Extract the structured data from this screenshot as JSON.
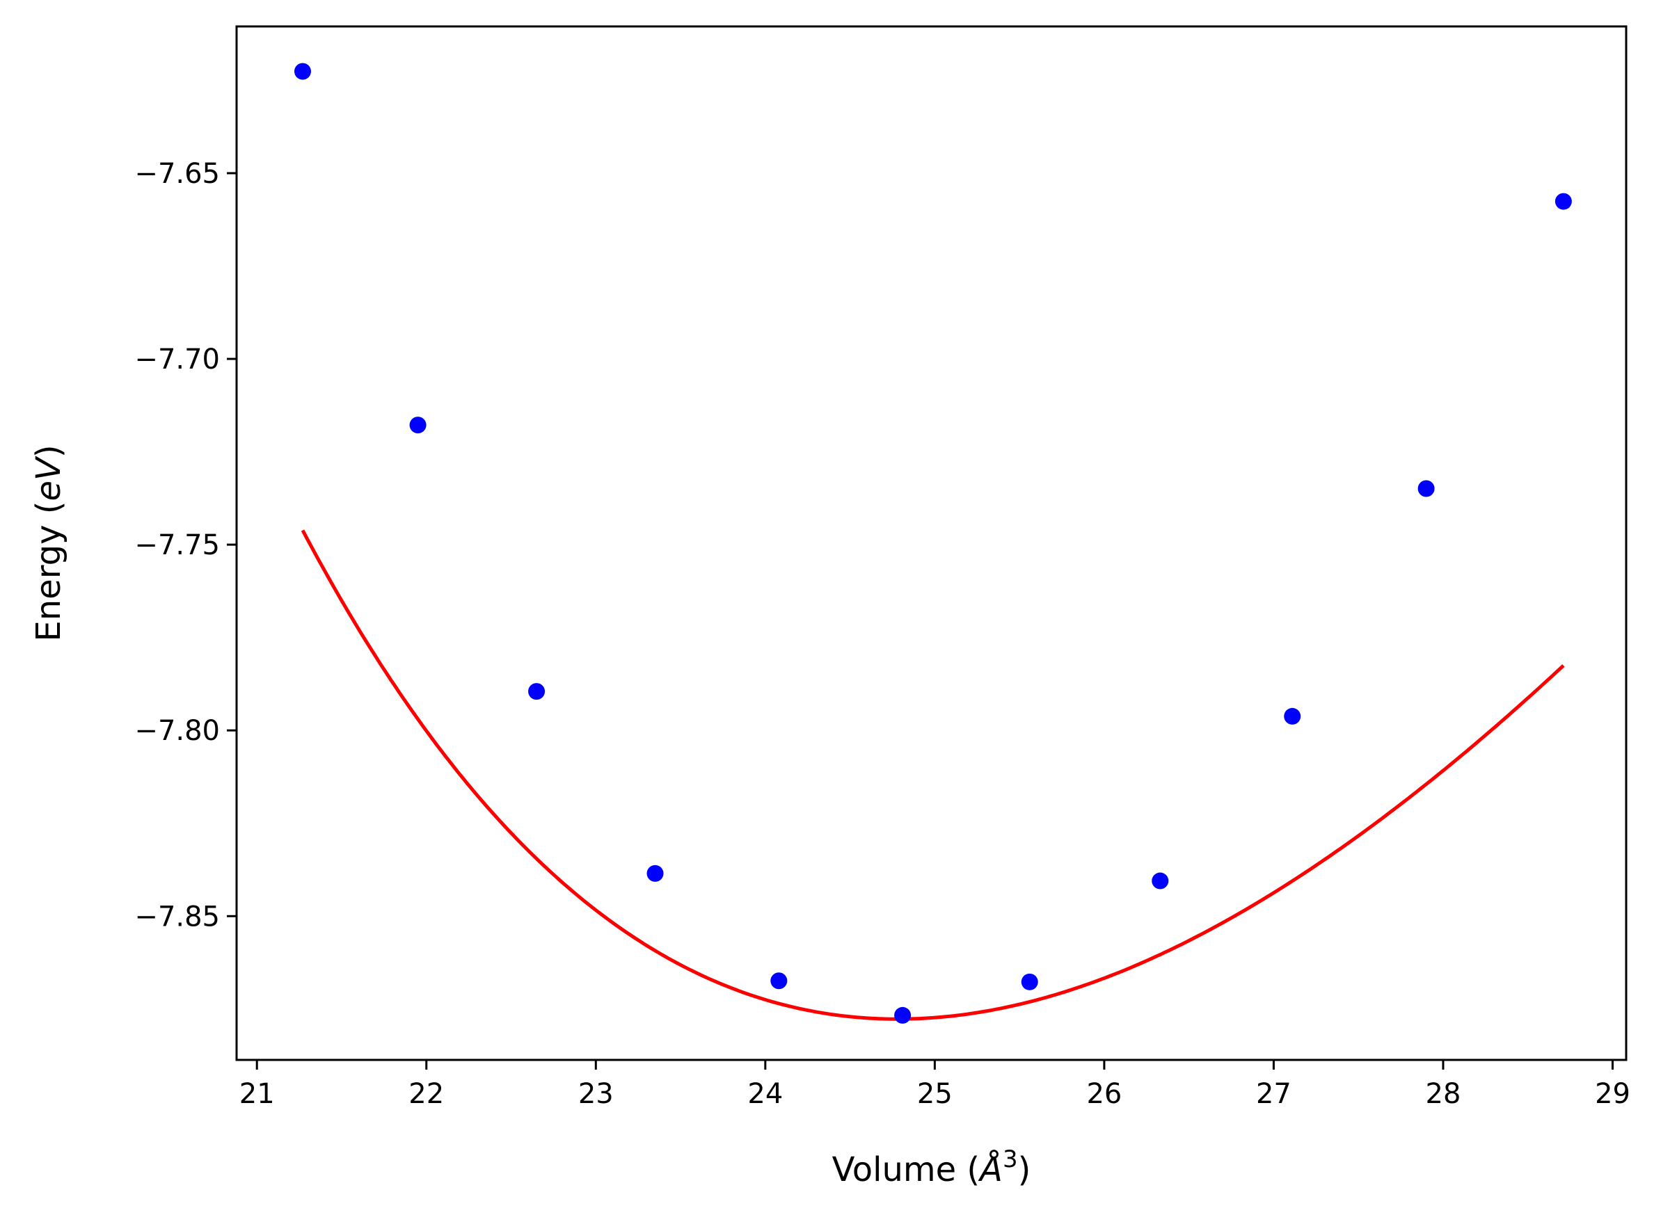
{
  "chart_data": {
    "type": "scatter",
    "title": "",
    "xlabel": {
      "prefix": "Volume (",
      "symbol": "Å",
      "exponent": "3",
      "suffix": ")"
    },
    "ylabel": {
      "prefix": "Energy (",
      "symbol": "eV",
      "suffix": ")"
    },
    "xlim": [
      20.88,
      29.08
    ],
    "ylim": [
      -7.8887,
      -7.6105
    ],
    "x_ticks": [
      21,
      22,
      23,
      24,
      25,
      26,
      27,
      28,
      29
    ],
    "x_tick_labels": [
      "21",
      "22",
      "23",
      "24",
      "25",
      "26",
      "27",
      "28",
      "29"
    ],
    "y_ticks": [
      -7.65,
      -7.7,
      -7.75,
      -7.8,
      -7.85
    ],
    "y_tick_labels": [
      "−7.65",
      "−7.70",
      "−7.75",
      "−7.80",
      "−7.85"
    ],
    "grid": false,
    "legend": "none",
    "series": [
      {
        "kind": "points",
        "color": "#0000ff",
        "x": [
          21.27,
          21.95,
          22.65,
          23.35,
          24.08,
          24.81,
          25.56,
          26.33,
          27.11,
          27.9,
          28.71
        ],
        "y": [
          -7.6226,
          -7.7178,
          -7.7895,
          -7.8385,
          -7.8674,
          -7.8767,
          -7.8677,
          -7.8405,
          -7.7962,
          -7.7349,
          -7.6576
        ]
      },
      {
        "kind": "fit-curve",
        "color": "#ff0000",
        "x_range": [
          21.27,
          28.71
        ],
        "model": "birch-murnaghan",
        "params": {
          "E0": -7.8777,
          "V0": 24.78,
          "B0_eV_per_A3": 0.4,
          "B0_prime": 4.5
        }
      }
    ]
  }
}
